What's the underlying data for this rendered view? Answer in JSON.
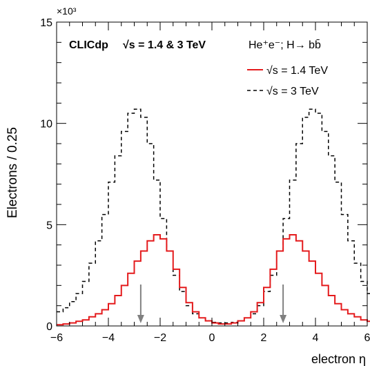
{
  "chart_data": {
    "type": "histogram",
    "experiment_label": "CLICdp",
    "energy_label": "√s = 1.4 & 3 TeV",
    "process_label": "He⁺e⁻; H→ bb̄",
    "xlabel": "electron η",
    "ylabel": "Electrons / 0.25",
    "y_multiplier": "×10³",
    "xlim": [
      -6,
      6
    ],
    "ylim": [
      0,
      15000
    ],
    "x_ticks": [
      -6,
      -4,
      -2,
      0,
      2,
      4,
      6
    ],
    "x_tick_labels": [
      "−6",
      "−4",
      "−2",
      "0",
      "2",
      "4",
      "6"
    ],
    "y_ticks": [
      0,
      5000,
      10000,
      15000
    ],
    "y_tick_labels": [
      "0",
      "5",
      "10",
      "15"
    ],
    "bin_width": 0.25,
    "bin_edges_start": -6,
    "series": [
      {
        "name": "√s = 1.4 TeV",
        "color": "#e41a1c",
        "dash": "solid",
        "values": [
          60,
          100,
          150,
          230,
          300,
          450,
          600,
          800,
          1100,
          1500,
          2000,
          2600,
          3200,
          3700,
          4200,
          4500,
          4300,
          3700,
          2800,
          1900,
          1150,
          700,
          400,
          250,
          150,
          100,
          100,
          150,
          250,
          400,
          700,
          1150,
          1900,
          2800,
          3700,
          4300,
          4500,
          4200,
          3700,
          3200,
          2600,
          2000,
          1500,
          1100,
          800,
          600,
          450,
          300,
          230,
          150,
          100,
          60
        ]
      },
      {
        "name": "√s = 3 TeV",
        "color": "#000000",
        "dash": "dashed",
        "values": [
          700,
          900,
          1200,
          1600,
          2200,
          3100,
          4200,
          5500,
          7100,
          8400,
          9600,
          10500,
          10700,
          10300,
          9000,
          7200,
          5300,
          3700,
          2500,
          1700,
          1000,
          600,
          400,
          250,
          180,
          150,
          150,
          180,
          250,
          400,
          600,
          1000,
          1700,
          2500,
          3700,
          5300,
          7200,
          9000,
          10300,
          10700,
          10500,
          9600,
          8400,
          7100,
          5500,
          4200,
          3100,
          2200,
          1600,
          1200,
          900,
          700
        ]
      }
    ],
    "arrows_x": [
      -2.75,
      2.75
    ],
    "arrow_color": "#808080"
  }
}
